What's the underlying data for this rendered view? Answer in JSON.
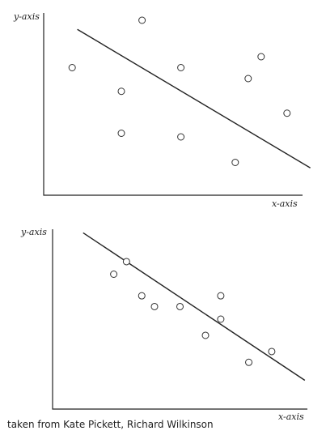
{
  "caption": "taken from Kate Pickett, Richard Wilkinson",
  "chart_data": [
    {
      "type": "scatter",
      "xlabel": "x-axis",
      "ylabel": "y-axis",
      "xlim": [
        0,
        10
      ],
      "ylim": [
        0,
        10
      ],
      "points": [
        {
          "x": 1.1,
          "y": 7.0
        },
        {
          "x": 3.0,
          "y": 5.7
        },
        {
          "x": 3.0,
          "y": 3.4
        },
        {
          "x": 3.8,
          "y": 9.6
        },
        {
          "x": 5.3,
          "y": 7.0
        },
        {
          "x": 5.3,
          "y": 3.2
        },
        {
          "x": 7.4,
          "y": 1.8
        },
        {
          "x": 7.9,
          "y": 6.4
        },
        {
          "x": 8.4,
          "y": 7.6
        },
        {
          "x": 9.4,
          "y": 4.5
        }
      ],
      "trend_line": {
        "x": [
          1.3,
          10.3
        ],
        "y": [
          9.1,
          1.5
        ]
      }
    },
    {
      "type": "scatter",
      "xlabel": "x-axis",
      "ylabel": "y-axis",
      "xlim": [
        0,
        10
      ],
      "ylim": [
        0,
        10
      ],
      "points": [
        {
          "x": 2.4,
          "y": 7.5
        },
        {
          "x": 2.9,
          "y": 8.2
        },
        {
          "x": 3.5,
          "y": 6.3
        },
        {
          "x": 4.0,
          "y": 5.7
        },
        {
          "x": 5.0,
          "y": 5.7
        },
        {
          "x": 6.0,
          "y": 4.1
        },
        {
          "x": 6.6,
          "y": 6.3
        },
        {
          "x": 6.6,
          "y": 5.0
        },
        {
          "x": 7.7,
          "y": 2.6
        },
        {
          "x": 8.6,
          "y": 3.2
        }
      ],
      "trend_line": {
        "x": [
          1.2,
          9.9
        ],
        "y": [
          9.8,
          1.6
        ]
      }
    }
  ]
}
